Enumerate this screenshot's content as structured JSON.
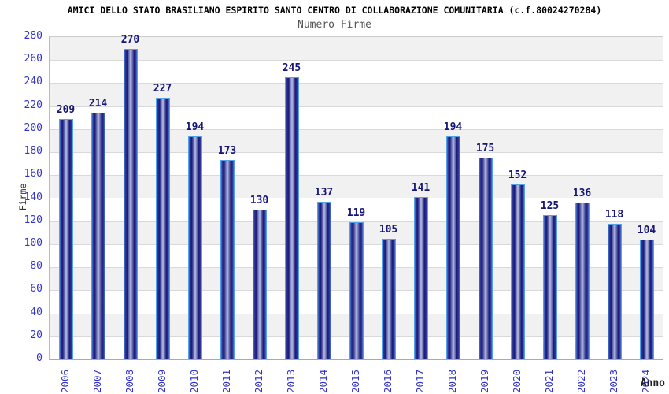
{
  "header": {
    "title": "AMICI DELLO STATO BRASILIANO ESPIRITO SANTO CENTRO DI COLLABORAZIONE COMUNITARIA (c.f.80024270284)",
    "subtitle": "Numero Firme"
  },
  "chart_data": {
    "type": "bar",
    "title": "AMICI DELLO STATO BRASILIANO ESPIRITO SANTO CENTRO DI COLLABORAZIONE COMUNITARIA (c.f.80024270284)",
    "subtitle": "Numero Firme",
    "xlabel": "Anno",
    "ylabel": "Firme",
    "categories": [
      "2006",
      "2007",
      "2008",
      "2009",
      "2010",
      "2011",
      "2012",
      "2013",
      "2014",
      "2015",
      "2016",
      "2017",
      "2018",
      "2019",
      "2020",
      "2021",
      "2022",
      "2023",
      "2024"
    ],
    "values": [
      209,
      214,
      270,
      227,
      194,
      173,
      130,
      245,
      137,
      119,
      105,
      141,
      194,
      175,
      152,
      125,
      136,
      118,
      104
    ],
    "ylim": [
      0,
      280
    ],
    "ytick_step": 20,
    "grid": true,
    "legend": "none",
    "colors": {
      "tick_label": "#3333cc",
      "value_label": "#15157a",
      "band_gray": "#f1f1f1",
      "band_white": "#ffffff",
      "gridline": "#d9d9d9",
      "bar_outline": "#55a0e8",
      "bar_dark": "#181878",
      "bar_mid": "#303a98",
      "bar_light": "#b8bfe4",
      "bar_edge": "#4a7ad4"
    }
  }
}
